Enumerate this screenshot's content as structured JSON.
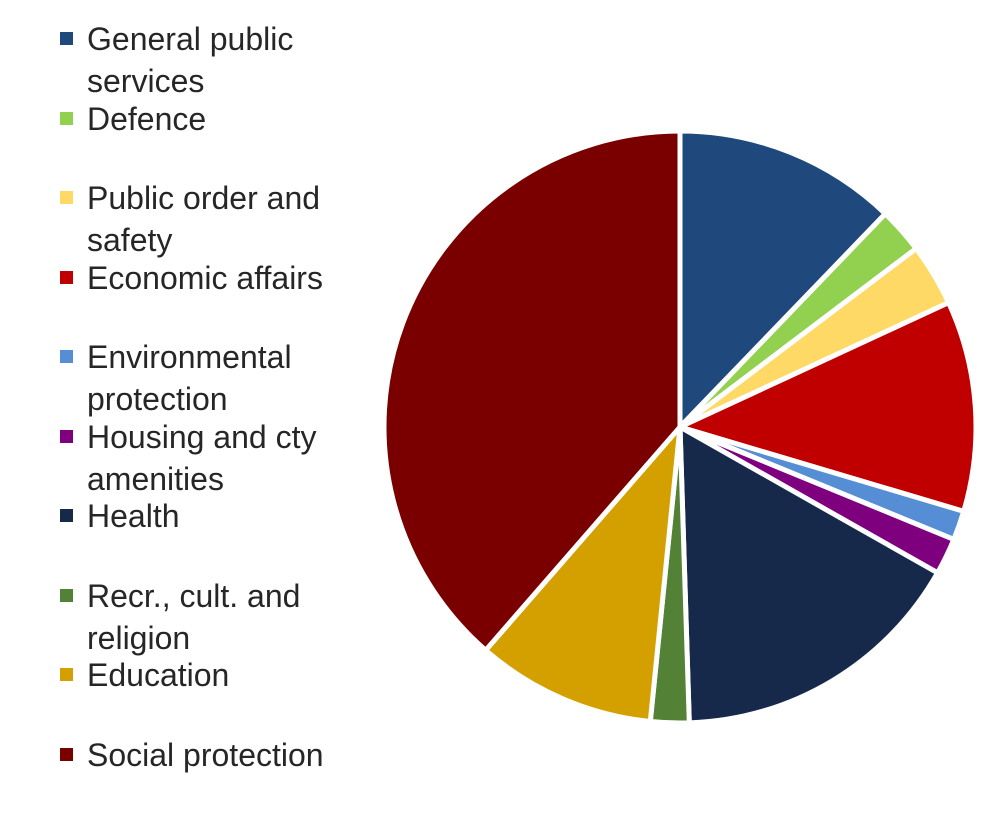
{
  "chart_data": {
    "type": "pie",
    "title": "",
    "start_angle_deg": 0,
    "direction": "clockwise",
    "legend_position": "left",
    "slices": [
      {
        "label": "General public services",
        "value": 12.2,
        "color": "#1F497D"
      },
      {
        "label": "Defence",
        "value": 2.5,
        "color": "#92D050"
      },
      {
        "label": "Public order and safety",
        "value": 3.4,
        "color": "#FFD966"
      },
      {
        "label": "Economic affairs",
        "value": 11.5,
        "color": "#C00000"
      },
      {
        "label": "Environmental protection",
        "value": 1.6,
        "color": "#558ED5"
      },
      {
        "label": "Housing and cty amenities",
        "value": 2.0,
        "color": "#7F007F"
      },
      {
        "label": "Health",
        "value": 16.3,
        "color": "#17294A"
      },
      {
        "label": "Recr., cult. and religion",
        "value": 2.1,
        "color": "#538135"
      },
      {
        "label": "Education",
        "value": 9.8,
        "color": "#D4A000"
      },
      {
        "label": "Social protection",
        "value": 38.6,
        "color": "#7A0000"
      }
    ]
  }
}
